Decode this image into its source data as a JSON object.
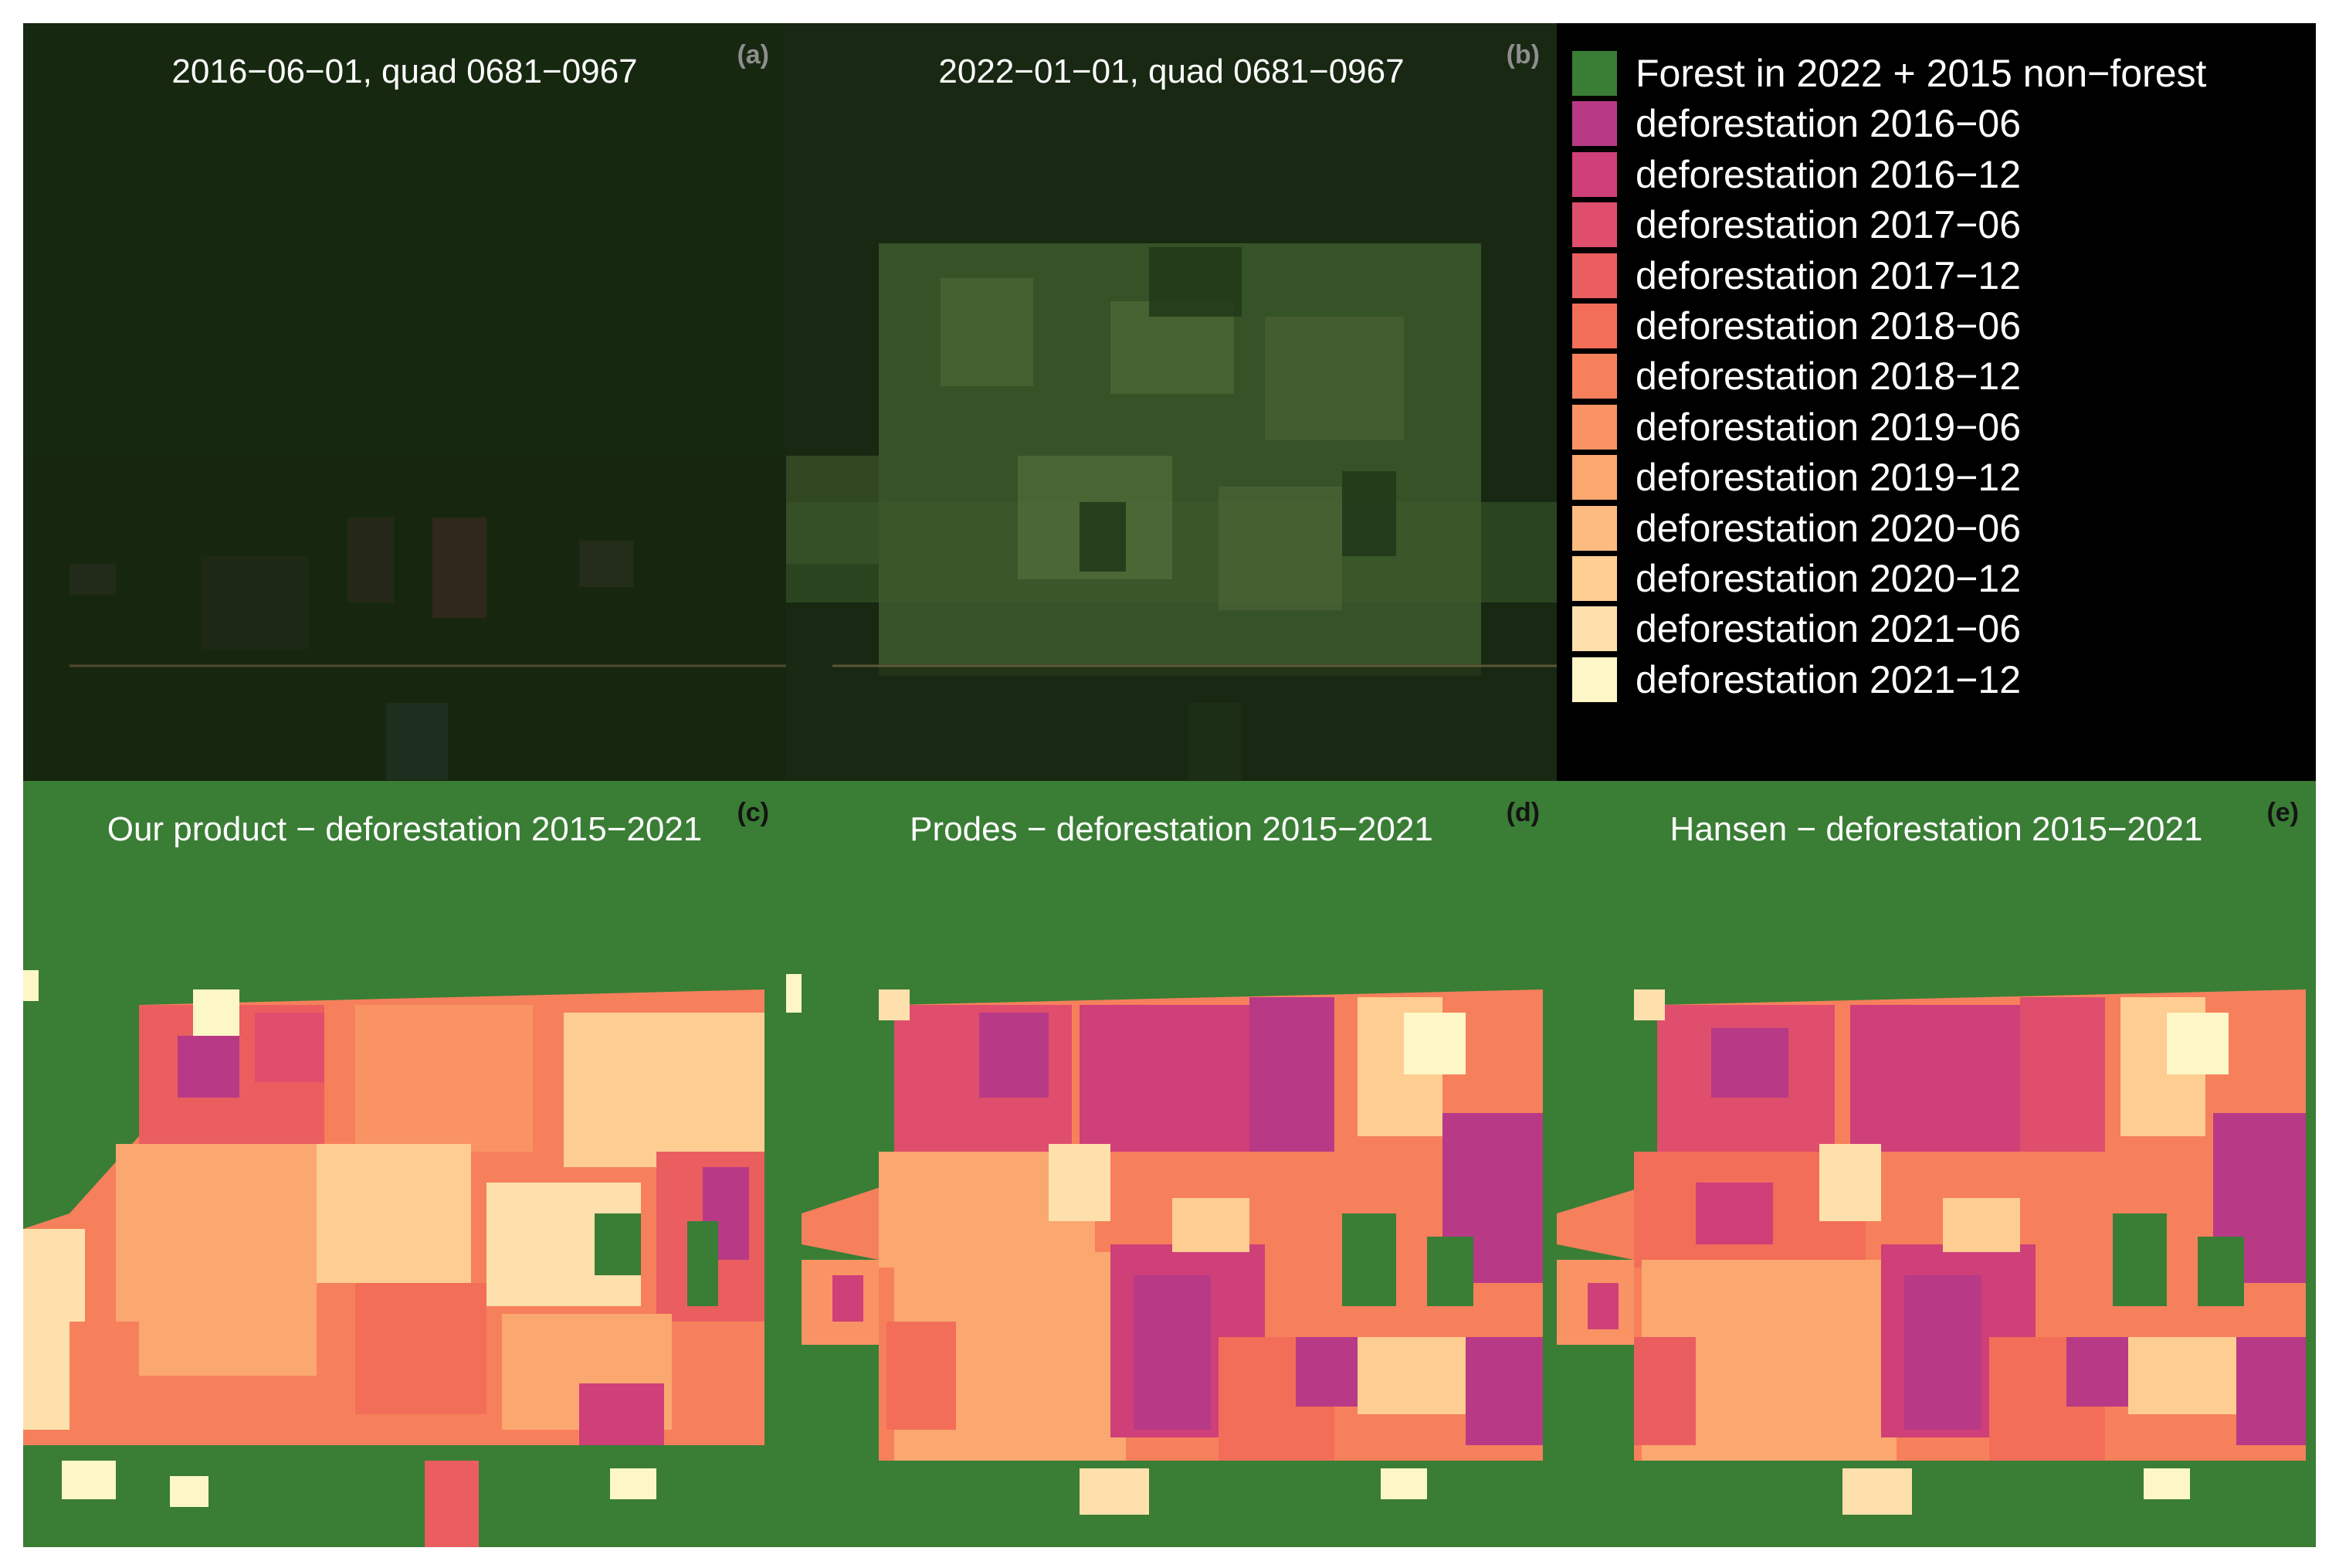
{
  "colors": {
    "forest": "#3a7d35",
    "satellite_dark": "#16260f",
    "legend_bg": "#000000"
  },
  "panels": {
    "a": {
      "label": "(a)",
      "title": "2016−06−01, quad 0681−0967"
    },
    "b": {
      "label": "(b)",
      "title": "2022−01−01, quad 0681−0967"
    },
    "c": {
      "label": "(c)",
      "title": "Our product − deforestation 2015−2021"
    },
    "d": {
      "label": "(d)",
      "title": "Prodes − deforestation 2015−2021"
    },
    "e": {
      "label": "(e)",
      "title": "Hansen − deforestation 2015−2021"
    }
  },
  "legend": [
    {
      "label": "Forest in 2022 + 2015 non−forest",
      "color": "#3a7d35"
    },
    {
      "label": "deforestation 2016−06",
      "color": "#b83a86"
    },
    {
      "label": "deforestation 2016−12",
      "color": "#cf3f78"
    },
    {
      "label": "deforestation 2017−06",
      "color": "#df4e6c"
    },
    {
      "label": "deforestation 2017−12",
      "color": "#ea5e5f"
    },
    {
      "label": "deforestation 2018−06",
      "color": "#f26e58"
    },
    {
      "label": "deforestation 2018−12",
      "color": "#f6805c"
    },
    {
      "label": "deforestation 2019−06",
      "color": "#f99364"
    },
    {
      "label": "deforestation 2019−12",
      "color": "#fba770"
    },
    {
      "label": "deforestation 2020−06",
      "color": "#fcbb80"
    },
    {
      "label": "deforestation 2020−12",
      "color": "#fdcd92"
    },
    {
      "label": "deforestation 2021−06",
      "color": "#fde0ac"
    },
    {
      "label": "deforestation 2021−12",
      "color": "#fdf6c6"
    }
  ]
}
